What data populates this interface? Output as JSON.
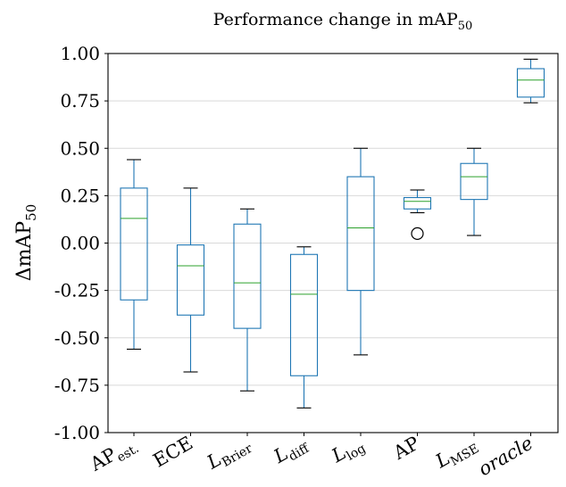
{
  "chart_data": {
    "type": "box",
    "title": "Performance change in mAP",
    "title_subscript": "50",
    "ylabel": "ΔmAP",
    "ylabel_subscript": "50",
    "ylim": [
      -1.0,
      1.0
    ],
    "yticks": [
      1.0,
      0.75,
      0.5,
      0.25,
      0.0,
      -0.25,
      -0.5,
      -0.75,
      -1.0
    ],
    "ytick_labels": [
      "1.00",
      "0.75",
      "0.50",
      "0.25",
      "0.00",
      "-0.25",
      "-0.50",
      "-0.75",
      "-1.00"
    ],
    "grid": true,
    "categories": [
      {
        "base": "AP",
        "sub": "est.",
        "italic": false
      },
      {
        "base": "ECE",
        "sub": "",
        "italic": false
      },
      {
        "base": "L",
        "sub": "Brier",
        "italic": true
      },
      {
        "base": "L",
        "sub": "diff",
        "italic": true
      },
      {
        "base": "L",
        "sub": "log",
        "italic": true
      },
      {
        "base": "AP",
        "sub": "",
        "italic": false
      },
      {
        "base": "L",
        "sub": "MSE",
        "italic": true,
        "sub_hat": true
      },
      {
        "base": "oracle",
        "sub": "",
        "italic": true
      }
    ],
    "boxes": [
      {
        "whislo": -0.56,
        "q1": -0.3,
        "med": 0.13,
        "q3": 0.29,
        "whishi": 0.44,
        "fliers": []
      },
      {
        "whislo": -0.68,
        "q1": -0.38,
        "med": -0.12,
        "q3": -0.01,
        "whishi": 0.29,
        "fliers": []
      },
      {
        "whislo": -0.78,
        "q1": -0.45,
        "med": -0.21,
        "q3": 0.1,
        "whishi": 0.18,
        "fliers": []
      },
      {
        "whislo": -0.87,
        "q1": -0.7,
        "med": -0.27,
        "q3": -0.06,
        "whishi": -0.02,
        "fliers": []
      },
      {
        "whislo": -0.59,
        "q1": -0.25,
        "med": 0.08,
        "q3": 0.35,
        "whishi": 0.5,
        "fliers": []
      },
      {
        "whislo": 0.16,
        "q1": 0.18,
        "med": 0.22,
        "q3": 0.24,
        "whishi": 0.28,
        "fliers": [
          0.05
        ]
      },
      {
        "whislo": 0.04,
        "q1": 0.23,
        "med": 0.35,
        "q3": 0.42,
        "whishi": 0.5,
        "fliers": []
      },
      {
        "whislo": 0.74,
        "q1": 0.77,
        "med": 0.86,
        "q3": 0.92,
        "whishi": 0.97,
        "fliers": []
      }
    ],
    "colors": {
      "box": "#1f77b4",
      "median": "#2ca02c",
      "cap": "#000000",
      "grid": "#d9d9d9"
    }
  }
}
